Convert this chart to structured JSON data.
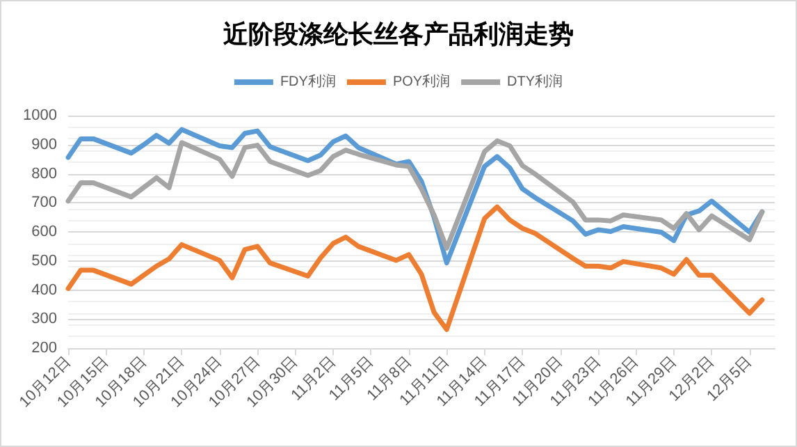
{
  "chart_data": {
    "type": "line",
    "title": "近阶段涤纶长丝各产品利润走势",
    "x": [
      "--10-12",
      "--10-13",
      "--10-14",
      "--10-17",
      "--10-18",
      "--10-19",
      "--10-20",
      "--10-21",
      "--10-24",
      "--10-25",
      "--10-26",
      "--10-27",
      "--10-28",
      "--10-31",
      "--11-01",
      "--11-02",
      "--11-03",
      "--11-04",
      "--11-07",
      "--11-08",
      "--11-09",
      "--11-10",
      "--11-11",
      "--11-14",
      "--11-15",
      "--11-16",
      "--11-17",
      "--11-18",
      "--11-21",
      "--11-22",
      "--11-23",
      "--11-24",
      "--11-25",
      "--11-28",
      "--11-29",
      "--11-30",
      "--12-01",
      "--12-02",
      "--12-05",
      "--12-06"
    ],
    "series": [
      {
        "name": "FDY利润",
        "color": "#5b9bd5",
        "values": [
          856,
          920,
          920,
          871,
          900,
          932,
          905,
          952,
          896,
          890,
          939,
          947,
          893,
          845,
          864,
          910,
          930,
          890,
          833,
          842,
          774,
          650,
          493,
          825,
          859,
          820,
          748,
          718,
          638,
          592,
          607,
          601,
          618,
          599,
          570,
          658,
          672,
          706,
          599,
          669
        ]
      },
      {
        "name": "POY利润",
        "color": "#ed7d31",
        "values": [
          405,
          468,
          468,
          420,
          451,
          482,
          507,
          556,
          502,
          442,
          539,
          550,
          493,
          448,
          510,
          560,
          582,
          550,
          502,
          522,
          454,
          323,
          264,
          646,
          686,
          641,
          612,
          595,
          509,
          482,
          482,
          476,
          498,
          476,
          454,
          505,
          451,
          451,
          320,
          366
        ]
      },
      {
        "name": "DTY利润",
        "color": "#a5a5a5",
        "values": [
          706,
          769,
          769,
          720,
          753,
          786,
          752,
          907,
          850,
          791,
          890,
          898,
          842,
          794,
          811,
          859,
          881,
          867,
          830,
          825,
          748,
          658,
          544,
          876,
          913,
          896,
          828,
          799,
          703,
          641,
          641,
          638,
          658,
          641,
          612,
          663,
          607,
          655,
          573,
          669
        ]
      }
    ],
    "xlim": [
      "--10-12",
      "--12-07"
    ],
    "xticks": [
      {
        "value": "--10-12",
        "label": "10月12日"
      },
      {
        "value": "--10-15",
        "label": "10月15日"
      },
      {
        "value": "--10-18",
        "label": "10月18日"
      },
      {
        "value": "--10-21",
        "label": "10月21日"
      },
      {
        "value": "--10-24",
        "label": "10月24日"
      },
      {
        "value": "--10-27",
        "label": "10月27日"
      },
      {
        "value": "--10-30",
        "label": "10月30日"
      },
      {
        "value": "--11-02",
        "label": "11月2日"
      },
      {
        "value": "--11-05",
        "label": "11月5日"
      },
      {
        "value": "--11-08",
        "label": "11月8日"
      },
      {
        "value": "--11-11",
        "label": "11月11日"
      },
      {
        "value": "--11-14",
        "label": "11月14日"
      },
      {
        "value": "--11-17",
        "label": "11月17日"
      },
      {
        "value": "--11-20",
        "label": "11月20日"
      },
      {
        "value": "--11-23",
        "label": "11月23日"
      },
      {
        "value": "--11-26",
        "label": "11月26日"
      },
      {
        "value": "--11-29",
        "label": "11月29日"
      },
      {
        "value": "--12-02",
        "label": "12月2日"
      },
      {
        "value": "--12-05",
        "label": "12月5日"
      }
    ],
    "ylim": [
      200,
      1000
    ],
    "yticks": [
      200,
      300,
      400,
      500,
      600,
      700,
      800,
      900,
      1000
    ],
    "grid": "y",
    "legend": "top",
    "marker": "none",
    "line_style": "solid"
  }
}
